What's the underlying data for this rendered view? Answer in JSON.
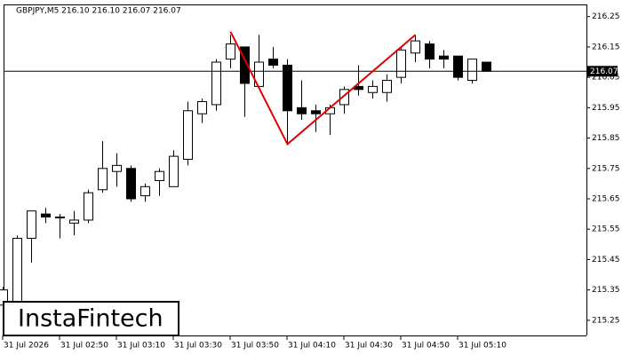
{
  "chart_data": {
    "type": "candlestick",
    "title": "GBPJPY,M5  216.10 216.10 216.07 216.07",
    "categories": [
      "31 Jul 2026",
      null,
      null,
      null,
      "31 Jul 02:50",
      null,
      null,
      null,
      "31 Jul 03:10",
      null,
      null,
      null,
      "31 Jul 03:30",
      null,
      null,
      null,
      "31 Jul 03:50",
      null,
      null,
      null,
      "31 Jul 04:10",
      null,
      null,
      null,
      "31 Jul 04:30",
      null,
      null,
      null,
      "31 Jul 04:50",
      null,
      null,
      null,
      "31 Jul 05:10",
      null,
      null
    ],
    "open": [
      215.3,
      215.31,
      215.52,
      215.6,
      215.59,
      215.57,
      215.58,
      215.68,
      215.74,
      215.75,
      215.66,
      215.71,
      215.69,
      215.78,
      215.93,
      215.96,
      216.11,
      216.15,
      216.02,
      216.11,
      216.09,
      215.95,
      215.94,
      215.93,
      215.96,
      216.02,
      216.0,
      216.0,
      216.05,
      216.13,
      216.16,
      216.12,
      216.12,
      216.04,
      216.1
    ],
    "high": [
      215.36,
      215.53,
      215.61,
      215.62,
      215.6,
      215.61,
      215.68,
      215.84,
      215.8,
      215.76,
      215.7,
      215.75,
      215.81,
      215.97,
      215.98,
      216.11,
      216.19,
      216.15,
      216.19,
      216.15,
      216.11,
      216.04,
      215.96,
      215.96,
      216.02,
      216.09,
      216.04,
      216.06,
      216.15,
      216.19,
      216.17,
      216.14,
      216.12,
      216.11,
      216.1
    ],
    "low": [
      215.29,
      215.3,
      215.44,
      215.57,
      215.52,
      215.53,
      215.57,
      215.67,
      215.69,
      215.64,
      215.64,
      215.66,
      215.69,
      215.76,
      215.9,
      215.94,
      216.08,
      215.92,
      216.02,
      216.08,
      215.83,
      215.91,
      215.87,
      215.86,
      215.93,
      215.99,
      215.98,
      215.97,
      216.03,
      216.1,
      216.08,
      216.08,
      216.04,
      216.03,
      216.07
    ],
    "close": [
      215.35,
      215.52,
      215.61,
      215.59,
      215.59,
      215.58,
      215.67,
      215.75,
      215.76,
      215.65,
      215.69,
      215.74,
      215.79,
      215.94,
      215.97,
      216.1,
      216.16,
      216.03,
      216.1,
      216.09,
      215.94,
      215.93,
      215.93,
      215.95,
      216.01,
      216.01,
      216.02,
      216.04,
      216.14,
      216.17,
      216.11,
      216.11,
      216.05,
      216.11,
      216.07
    ],
    "up_color": "#ffffff",
    "down_color": "#000000",
    "ylim": [
      215.2,
      216.29
    ],
    "yticks": [
      215.25,
      215.35,
      215.45,
      215.55,
      215.65,
      215.75,
      215.85,
      215.95,
      216.05,
      216.15,
      216.25
    ],
    "last_price": 216.07,
    "pattern": {
      "color": "#e00000",
      "x": [
        16,
        20,
        29
      ],
      "values": [
        216.2,
        215.83,
        216.19
      ]
    },
    "logo": "InstaFintech"
  }
}
